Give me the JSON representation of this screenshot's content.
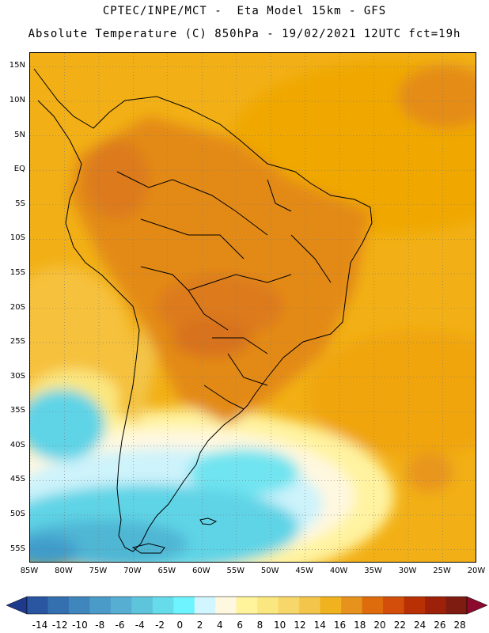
{
  "header": {
    "line1": "CPTEC/INPE/MCT -  Eta Model 15km - GFS",
    "line2": "Absolute Temperature (C) 850hPa - 19/02/2021 12UTC fct=19h"
  },
  "map": {
    "lat_labels": [
      "15N",
      "10N",
      "5N",
      "EQ",
      "5S",
      "10S",
      "15S",
      "20S",
      "25S",
      "30S",
      "35S",
      "40S",
      "45S",
      "50S",
      "55S"
    ],
    "lon_labels": [
      "85W",
      "80W",
      "75W",
      "70W",
      "65W",
      "60W",
      "55W",
      "50W",
      "45W",
      "40W",
      "35W",
      "30W",
      "25W",
      "20W"
    ],
    "lon_range": [
      -85,
      -20
    ],
    "lat_range": [
      -57,
      17
    ],
    "grid": "dotted",
    "colors": {
      "ocean_warm": "#f0a500",
      "ocean_tropical": "#f5ad10",
      "land_hot": "#e38a18",
      "land_hotter": "#dc7a1c",
      "coastline": "#000000"
    }
  },
  "colorbar": {
    "ticks": [
      "-14",
      "-12",
      "-10",
      "-8",
      "-6",
      "-4",
      "-2",
      "0",
      "2",
      "4",
      "6",
      "8",
      "10",
      "12",
      "14",
      "16",
      "18",
      "20",
      "22",
      "24",
      "26",
      "28"
    ],
    "colors": [
      "#1f3a8a",
      "#2a55a0",
      "#3470b0",
      "#3f86bd",
      "#4b9bc8",
      "#56aed2",
      "#5dc4dc",
      "#66dceb",
      "#6df4ff",
      "#d2f6ff",
      "#fff8e0",
      "#fff39c",
      "#fbe77f",
      "#f8d76a",
      "#f3c54a",
      "#f0b21e",
      "#e6921c",
      "#de6c0c",
      "#d24e0a",
      "#b83004",
      "#9c2108",
      "#7e1c12",
      "#8b0a2e"
    ]
  }
}
